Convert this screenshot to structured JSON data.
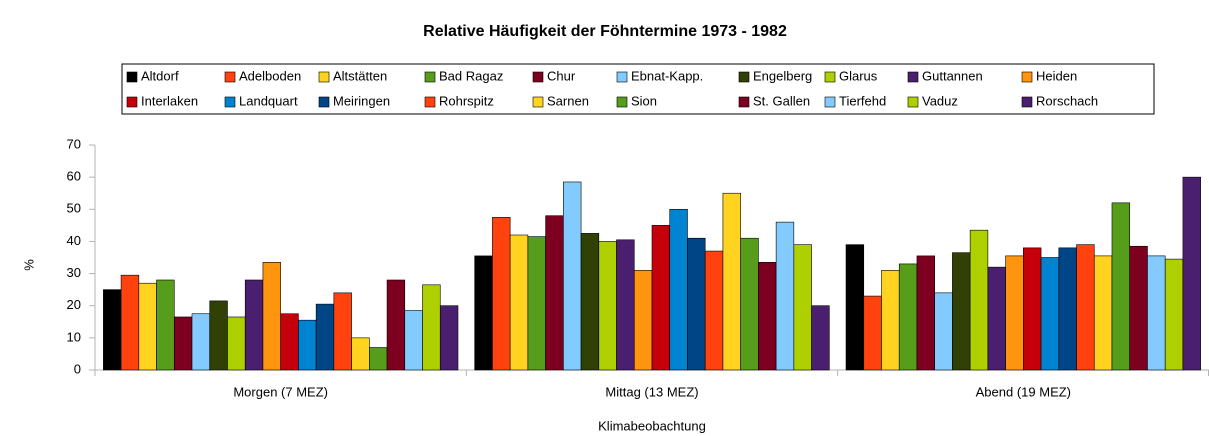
{
  "chart_data": {
    "type": "bar",
    "title": "Relative Häufigkeit der Föhntermine 1973 - 1982",
    "x_label": "Klimabeobachtung",
    "y_label": "%",
    "categories": [
      "Morgen (7 MEZ)",
      "Mittag (13 MEZ)",
      "Abend (19 MEZ)"
    ],
    "ylim": [
      0,
      70
    ],
    "yticks": [
      0,
      10,
      20,
      30,
      40,
      50,
      60,
      70
    ],
    "series": [
      {
        "name": "Altdorf",
        "color": "#000000",
        "values": [
          25,
          35.5,
          39
        ]
      },
      {
        "name": "Adelboden",
        "color": "#ff420e",
        "values": [
          29.5,
          47.5,
          23
        ]
      },
      {
        "name": "Altstätten",
        "color": "#ffd320",
        "values": [
          27,
          42,
          31
        ]
      },
      {
        "name": "Bad Ragaz",
        "color": "#579d1c",
        "values": [
          28,
          41.5,
          33
        ]
      },
      {
        "name": "Chur",
        "color": "#7e0021",
        "values": [
          16.5,
          48,
          35.5
        ]
      },
      {
        "name": "Ebnat-Kapp.",
        "color": "#83caff",
        "values": [
          17.5,
          58.5,
          24
        ]
      },
      {
        "name": "Engelberg",
        "color": "#314004",
        "values": [
          21.5,
          42.5,
          36.5
        ]
      },
      {
        "name": "Glarus",
        "color": "#aecf00",
        "values": [
          16.5,
          40,
          43.5
        ]
      },
      {
        "name": "Guttannen",
        "color": "#4b1f6f",
        "values": [
          28,
          40.5,
          32
        ]
      },
      {
        "name": "Heiden",
        "color": "#ff950e",
        "values": [
          33.5,
          31,
          35.5
        ]
      },
      {
        "name": "Interlaken",
        "color": "#c5000b",
        "values": [
          17.5,
          45,
          38
        ]
      },
      {
        "name": "Landquart",
        "color": "#0084d1",
        "values": [
          15.5,
          50,
          35
        ]
      },
      {
        "name": "Meiringen",
        "color": "#004586",
        "values": [
          20.5,
          41,
          38
        ]
      },
      {
        "name": "Rohrspitz",
        "color": "#ff420e",
        "values": [
          24,
          37,
          39
        ]
      },
      {
        "name": "Sarnen",
        "color": "#ffd320",
        "values": [
          10,
          55,
          35.5
        ]
      },
      {
        "name": "Sion",
        "color": "#579d1c",
        "values": [
          7,
          41,
          52
        ]
      },
      {
        "name": "St. Gallen",
        "color": "#7e0021",
        "values": [
          28,
          33.5,
          38.5
        ]
      },
      {
        "name": "Tierfehd",
        "color": "#83caff",
        "values": [
          18.5,
          46,
          35.5
        ]
      },
      {
        "name": "Vaduz",
        "color": "#aecf00",
        "values": [
          26.5,
          39,
          34.5
        ]
      },
      {
        "name": "Rorschach",
        "color": "#4b1f6f",
        "values": [
          20,
          20,
          60
        ]
      }
    ]
  }
}
